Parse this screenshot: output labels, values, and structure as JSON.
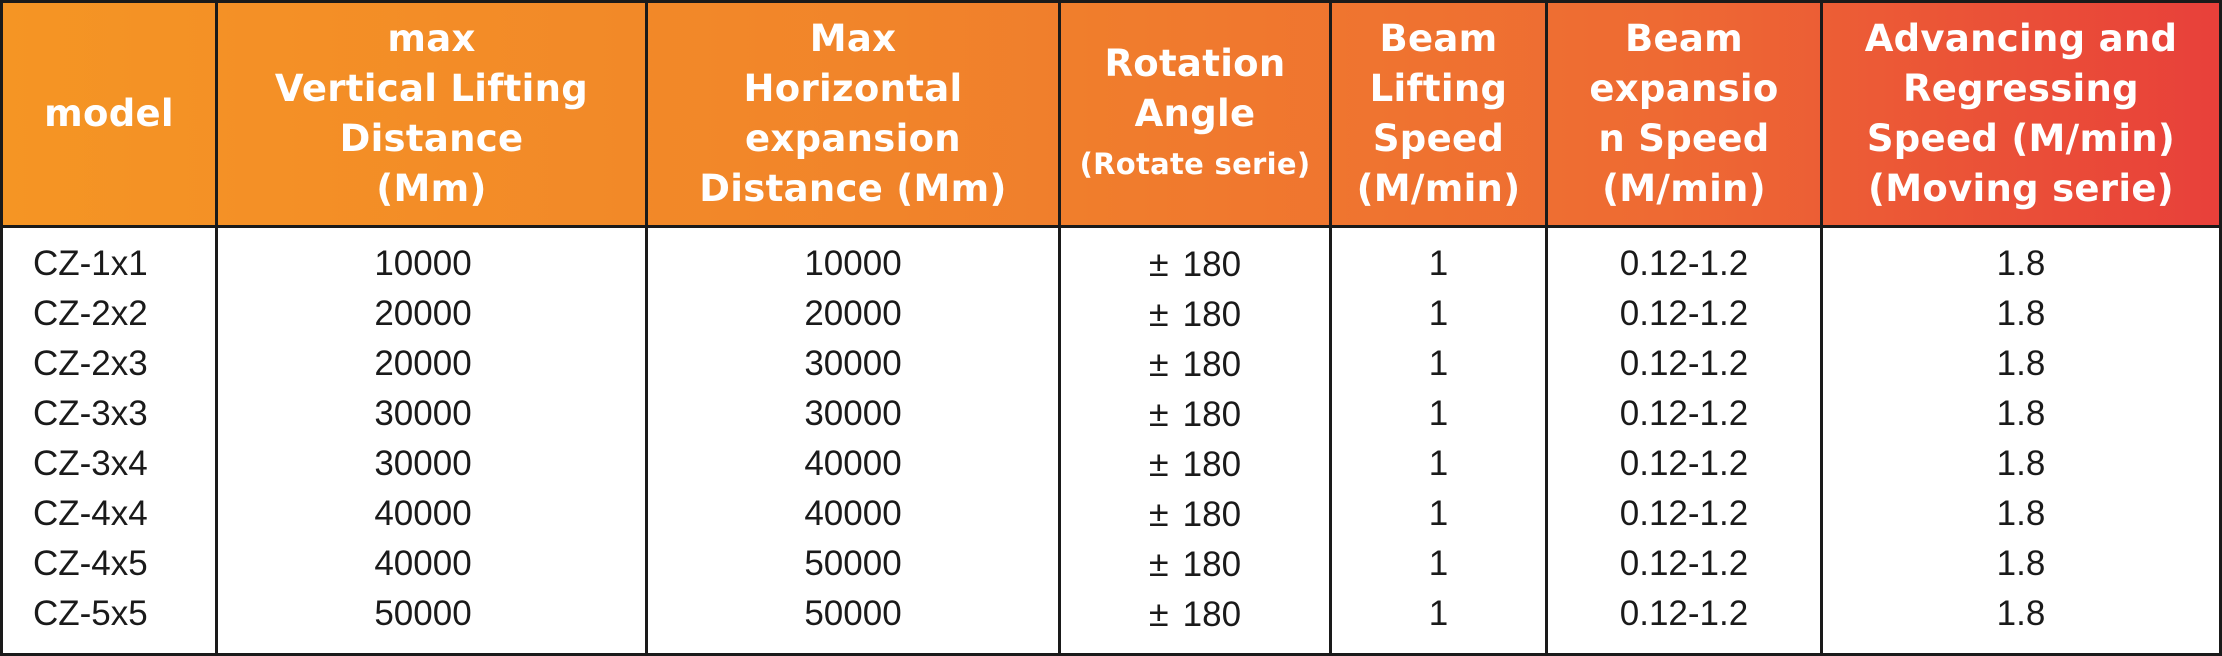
{
  "headers": [
    [
      "model"
    ],
    [
      "max",
      "Vertical Lifting",
      "Distance",
      "(Mm)"
    ],
    [
      "Max",
      "Horizontal",
      "expansion",
      "Distance (Mm)"
    ],
    [
      "Rotation",
      "Angle",
      "(Rotate serie)"
    ],
    [
      "Beam",
      "Lifting",
      "Speed",
      "(M/min)"
    ],
    [
      "Beam",
      "expansio",
      "n Speed",
      "(M/min)"
    ],
    [
      "Advancing and",
      "Regressing",
      "Speed (M/min)",
      "(Moving serie)"
    ]
  ],
  "rows": [
    {
      "model": "CZ-1x1",
      "vertical": "10000",
      "horizontal": "10000",
      "rotation_sign": "±",
      "rotation": "180",
      "lifting": "1",
      "expansion": "0.12-1.2",
      "advancing": "1.8"
    },
    {
      "model": "CZ-2x2",
      "vertical": "20000",
      "horizontal": "20000",
      "rotation_sign": "±",
      "rotation": "180",
      "lifting": "1",
      "expansion": "0.12-1.2",
      "advancing": "1.8"
    },
    {
      "model": "CZ-2x3",
      "vertical": "20000",
      "horizontal": "30000",
      "rotation_sign": "±",
      "rotation": "180",
      "lifting": "1",
      "expansion": "0.12-1.2",
      "advancing": "1.8"
    },
    {
      "model": "CZ-3x3",
      "vertical": "30000",
      "horizontal": "30000",
      "rotation_sign": "±",
      "rotation": "180",
      "lifting": "1",
      "expansion": "0.12-1.2",
      "advancing": "1.8"
    },
    {
      "model": "CZ-3x4",
      "vertical": "30000",
      "horizontal": "40000",
      "rotation_sign": "±",
      "rotation": "180",
      "lifting": "1",
      "expansion": "0.12-1.2",
      "advancing": "1.8"
    },
    {
      "model": "CZ-4x4",
      "vertical": "40000",
      "horizontal": "40000",
      "rotation_sign": "±",
      "rotation": "180",
      "lifting": "1",
      "expansion": "0.12-1.2",
      "advancing": "1.8"
    },
    {
      "model": "CZ-4x5",
      "vertical": "40000",
      "horizontal": "50000",
      "rotation_sign": "±",
      "rotation": "180",
      "lifting": "1",
      "expansion": "0.12-1.2",
      "advancing": "1.8"
    },
    {
      "model": "CZ-5x5",
      "vertical": "50000",
      "horizontal": "50000",
      "rotation_sign": "±",
      "rotation": "180",
      "lifting": "1",
      "expansion": "0.12-1.2",
      "advancing": "1.8"
    }
  ],
  "colors": {
    "header_start": "#f59524",
    "header_end": "#e8403a",
    "header_text": "#ffffff",
    "body_text": "#1a1a1a",
    "rule": "#1a1a1a"
  }
}
